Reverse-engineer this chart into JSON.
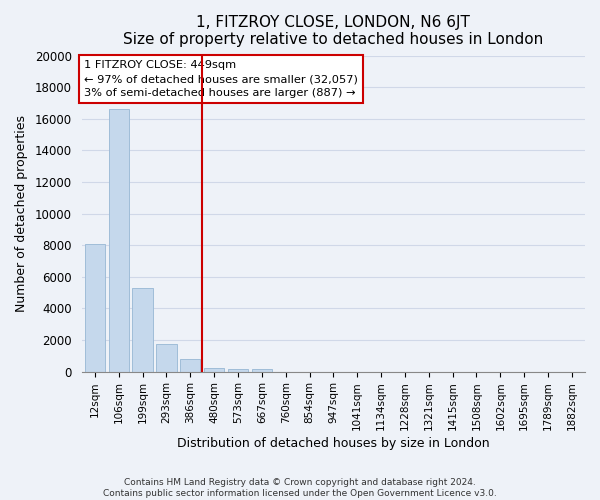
{
  "title": "1, FITZROY CLOSE, LONDON, N6 6JT",
  "subtitle": "Size of property relative to detached houses in London",
  "xlabel": "Distribution of detached houses by size in London",
  "ylabel": "Number of detached properties",
  "bar_labels": [
    "12sqm",
    "106sqm",
    "199sqm",
    "293sqm",
    "386sqm",
    "480sqm",
    "573sqm",
    "667sqm",
    "760sqm",
    "854sqm",
    "947sqm",
    "1041sqm",
    "1134sqm",
    "1228sqm",
    "1321sqm",
    "1415sqm",
    "1508sqm",
    "1602sqm",
    "1695sqm",
    "1789sqm",
    "1882sqm"
  ],
  "bar_values": [
    8100,
    16600,
    5300,
    1750,
    800,
    220,
    150,
    150,
    0,
    0,
    0,
    0,
    0,
    0,
    0,
    0,
    0,
    0,
    0,
    0,
    0
  ],
  "bar_color": "#c5d8ec",
  "bar_edge_color": "#a0bdd8",
  "vline_x": 4.48,
  "vline_color": "#cc0000",
  "annotation_title": "1 FITZROY CLOSE: 449sqm",
  "annotation_line1": "← 97% of detached houses are smaller (32,057)",
  "annotation_line2": "3% of semi-detached houses are larger (887) →",
  "annotation_box_color": "#ffffff",
  "annotation_box_edge": "#cc0000",
  "ylim": [
    0,
    20000
  ],
  "yticks": [
    0,
    2000,
    4000,
    6000,
    8000,
    10000,
    12000,
    14000,
    16000,
    18000,
    20000
  ],
  "footnote1": "Contains HM Land Registry data © Crown copyright and database right 2024.",
  "footnote2": "Contains public sector information licensed under the Open Government Licence v3.0.",
  "background_color": "#eef2f8",
  "grid_color": "#d0d8e8",
  "title_fontsize": 11,
  "subtitle_fontsize": 10
}
